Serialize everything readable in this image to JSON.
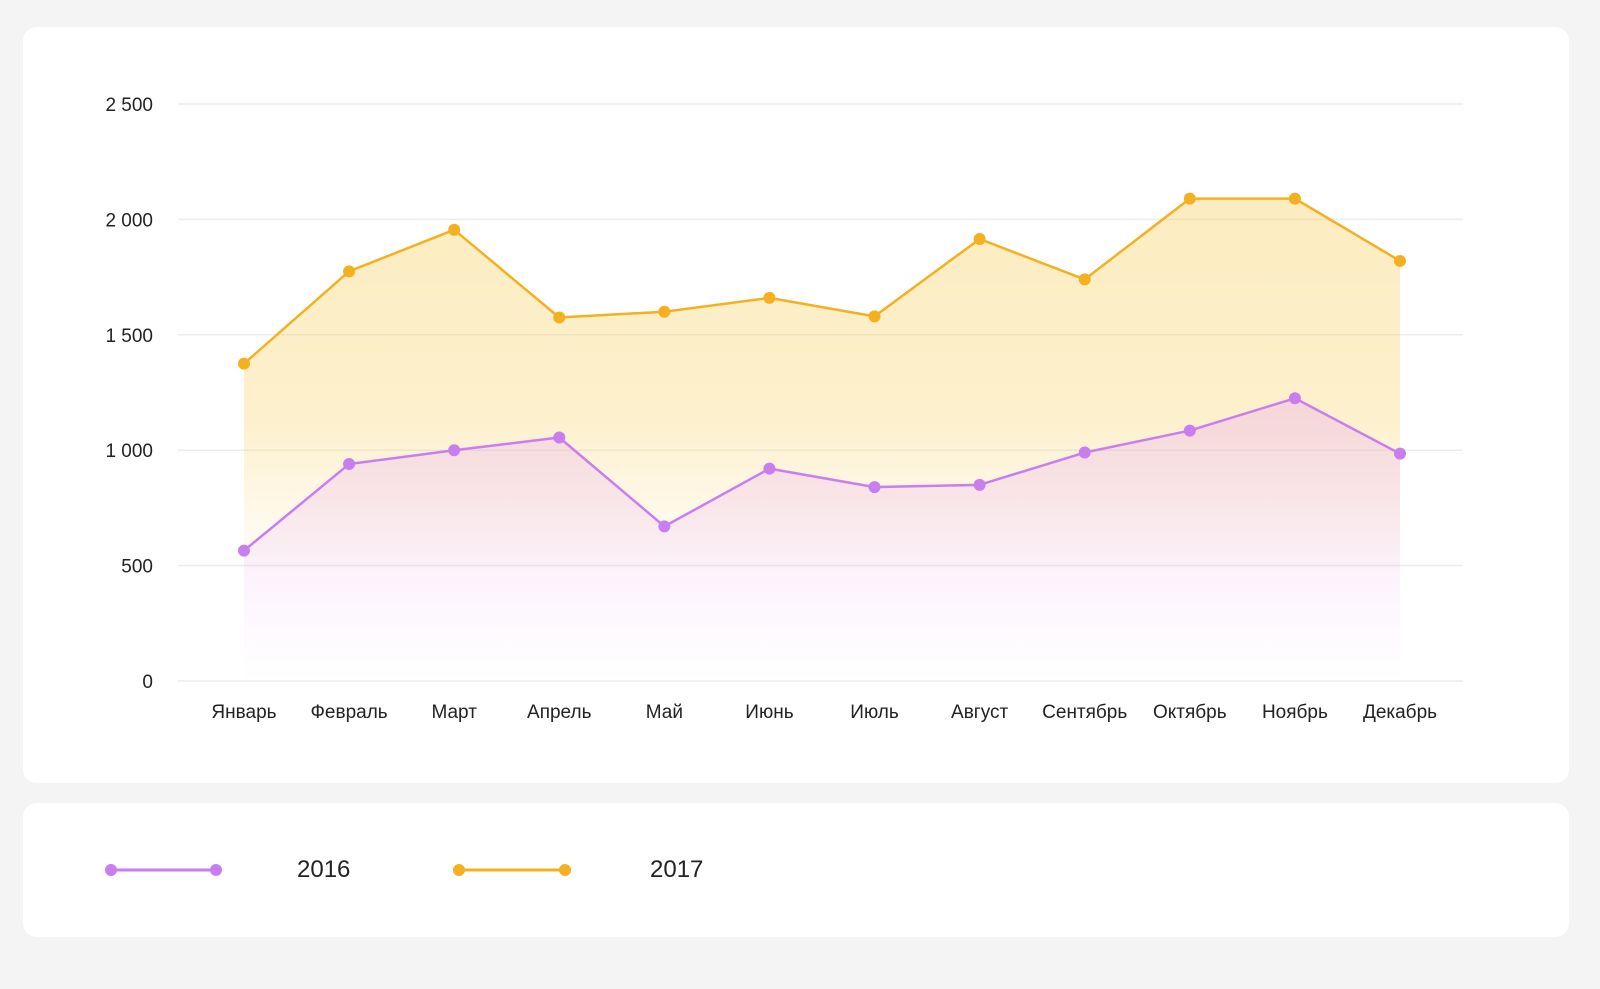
{
  "chart_data": {
    "type": "area",
    "categories": [
      "Январь",
      "Февраль",
      "Март",
      "Апрель",
      "Май",
      "Июнь",
      "Июль",
      "Август",
      "Сентябрь",
      "Октябрь",
      "Ноябрь",
      "Декабрь"
    ],
    "series": [
      {
        "name": "2016",
        "color": "#c97ef0",
        "values": [
          565,
          940,
          1000,
          1055,
          670,
          920,
          840,
          850,
          990,
          1085,
          1225,
          985
        ]
      },
      {
        "name": "2017",
        "color": "#f5b020",
        "values": [
          1375,
          1775,
          1955,
          1575,
          1600,
          1660,
          1580,
          1915,
          1740,
          2090,
          2090,
          1820
        ]
      }
    ],
    "yticks": [
      "0",
      "500",
      "1 000",
      "1 500",
      "2 000",
      "2 500"
    ],
    "ylim": [
      0,
      2500
    ],
    "grid": true,
    "legend_position": "bottom"
  }
}
